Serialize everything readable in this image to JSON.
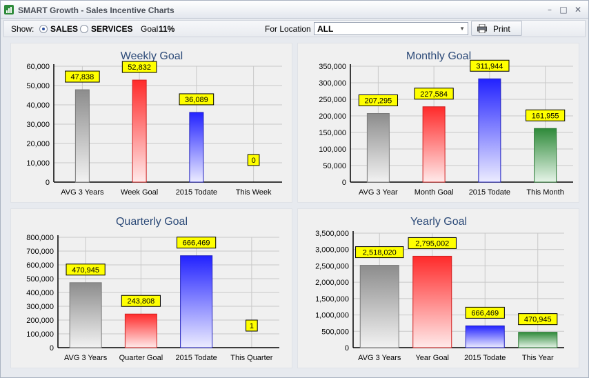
{
  "window": {
    "title": "SMART Growth - Sales Incentive Charts",
    "controls": [
      "minimize",
      "maximize",
      "close"
    ]
  },
  "toolbar": {
    "show_label": "Show:",
    "options": [
      {
        "label": "SALES",
        "selected": true
      },
      {
        "label": "SERVICES",
        "selected": false
      }
    ],
    "goal_label": "Goal",
    "goal_value": "11%",
    "location_label": "For Location",
    "location_value": "ALL",
    "print_label": "Print"
  },
  "colors": {
    "gray": "#a9a9a9",
    "red": "#ff3c3c",
    "blue": "#3a3aff",
    "green": "#3c9a48",
    "label_bg": "#ffff00",
    "title": "#2c4a78"
  },
  "chart_data": [
    {
      "type": "bar",
      "title": "Weekly Goal",
      "categories": [
        "AVG 3 Years",
        "Week Goal",
        "2015 Todate",
        "This Week"
      ],
      "values": [
        47838,
        52832,
        36089,
        0
      ],
      "value_labels": [
        "47,838",
        "52,832",
        "36,089",
        "0"
      ],
      "bar_colors": [
        "gray",
        "red",
        "blue",
        "green"
      ],
      "ylim": [
        0,
        60000
      ],
      "yticks": [
        0,
        10000,
        20000,
        30000,
        40000,
        50000,
        60000
      ],
      "ytick_labels": [
        "0",
        "10,000",
        "20,000",
        "30,000",
        "40,000",
        "50,000",
        "60,000"
      ],
      "grid": true,
      "xlabel": "",
      "ylabel": ""
    },
    {
      "type": "bar",
      "title": "Monthly Goal",
      "categories": [
        "AVG 3 Year",
        "Month Goal",
        "2015 Todate",
        "This Month"
      ],
      "values": [
        207295,
        227584,
        311944,
        161955
      ],
      "value_labels": [
        "207,295",
        "227,584",
        "311,944",
        "161,955"
      ],
      "bar_colors": [
        "gray",
        "red",
        "blue",
        "green"
      ],
      "ylim": [
        0,
        350000
      ],
      "yticks": [
        0,
        50000,
        100000,
        150000,
        200000,
        250000,
        300000,
        350000
      ],
      "ytick_labels": [
        "0",
        "50,000",
        "100,000",
        "150,000",
        "200,000",
        "250,000",
        "300,000",
        "350,000"
      ],
      "grid": true,
      "xlabel": "",
      "ylabel": ""
    },
    {
      "type": "bar",
      "title": "Quarterly Goal",
      "categories": [
        "AVG 3 Years",
        "Quarter Goal",
        "2015 Todate",
        "This Quarter"
      ],
      "values": [
        470945,
        243808,
        666469,
        1
      ],
      "value_labels": [
        "470,945",
        "243,808",
        "666,469",
        "1"
      ],
      "bar_colors": [
        "gray",
        "red",
        "blue",
        "green"
      ],
      "ylim": [
        0,
        800000
      ],
      "yticks": [
        0,
        100000,
        200000,
        300000,
        400000,
        500000,
        600000,
        700000,
        800000
      ],
      "ytick_labels": [
        "0",
        "100,000",
        "200,000",
        "300,000",
        "400,000",
        "500,000",
        "600,000",
        "700,000",
        "800,000"
      ],
      "grid": true,
      "xlabel": "",
      "ylabel": ""
    },
    {
      "type": "bar",
      "title": "Yearly Goal",
      "categories": [
        "AVG 3 Years",
        "Year Goal",
        "2015 Todate",
        "This Year"
      ],
      "values": [
        2518020,
        2795002,
        666469,
        470945
      ],
      "value_labels": [
        "2,518,020",
        "2,795,002",
        "666,469",
        "470,945"
      ],
      "bar_colors": [
        "gray",
        "red",
        "blue",
        "green"
      ],
      "ylim": [
        0,
        3500000
      ],
      "yticks": [
        0,
        500000,
        1000000,
        1500000,
        2000000,
        2500000,
        3000000,
        3500000
      ],
      "ytick_labels": [
        "0",
        "500,000",
        "1,000,000",
        "1,500,000",
        "2,000,000",
        "2,500,000",
        "3,000,000",
        "3,500,000"
      ],
      "grid": true,
      "xlabel": "",
      "ylabel": ""
    }
  ]
}
